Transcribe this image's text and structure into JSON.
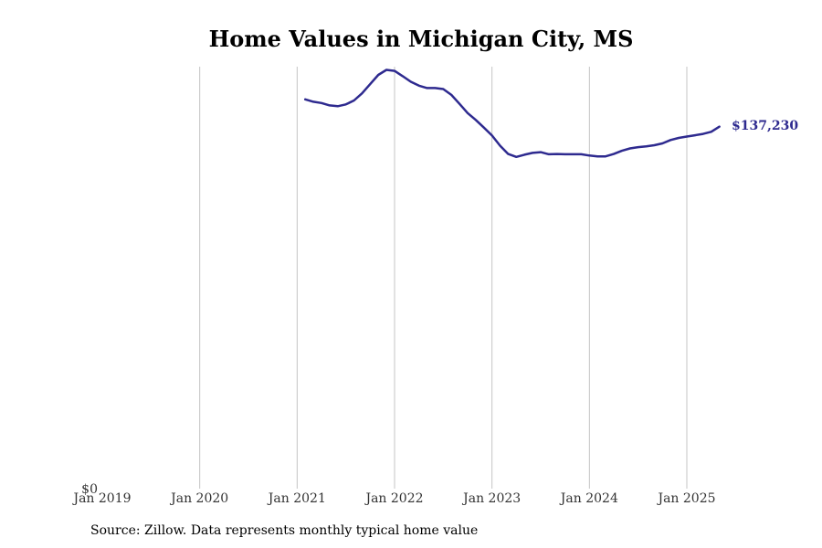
{
  "chart_data": {
    "type": "line",
    "title": "Home Values in Michigan City, MS",
    "xlabel": "",
    "ylabel": "",
    "x_ticks": [
      "Jan 2019",
      "Jan 2020",
      "Jan 2021",
      "Jan 2022",
      "Jan 2023",
      "Jan 2024",
      "Jan 2025"
    ],
    "y_ticks": [
      "$0"
    ],
    "ylim": [
      0,
      160000
    ],
    "grid": "vertical",
    "line_color": "#2e2a8f",
    "end_label": "$137,230",
    "series": [
      {
        "x": [
          "2021-02",
          "2021-03",
          "2021-04",
          "2021-05",
          "2021-06",
          "2021-07",
          "2021-08",
          "2021-09",
          "2021-10",
          "2021-11",
          "2021-12",
          "2022-01",
          "2022-02",
          "2022-03",
          "2022-04",
          "2022-05",
          "2022-06",
          "2022-07",
          "2022-08",
          "2022-09",
          "2022-10",
          "2022-11",
          "2022-12",
          "2023-01",
          "2023-02",
          "2023-03",
          "2023-04",
          "2023-05",
          "2023-06",
          "2023-07",
          "2023-08",
          "2023-09",
          "2023-10",
          "2023-11",
          "2023-12",
          "2024-01",
          "2024-02",
          "2024-03",
          "2024-04",
          "2024-05",
          "2024-06",
          "2024-07",
          "2024-08",
          "2024-09",
          "2024-10",
          "2024-11",
          "2024-12",
          "2025-01",
          "2025-02",
          "2025-03",
          "2025-04",
          "2025-05"
        ],
        "values": [
          147600,
          146700,
          146200,
          145300,
          145000,
          145700,
          147200,
          149900,
          153400,
          156900,
          158800,
          158400,
          156400,
          154300,
          152800,
          151900,
          151900,
          151500,
          149300,
          145900,
          142400,
          139800,
          136900,
          133900,
          130000,
          126900,
          125800,
          126600,
          127300,
          127600,
          126800,
          126900,
          126800,
          126800,
          126800,
          126300,
          126000,
          126000,
          126900,
          128100,
          129000,
          129500,
          129800,
          130200,
          130900,
          132200,
          133000,
          133500,
          134000,
          134500,
          135300,
          137230
        ]
      }
    ]
  },
  "footer": {
    "source": "Source: Zillow. Data represents monthly typical home value"
  }
}
